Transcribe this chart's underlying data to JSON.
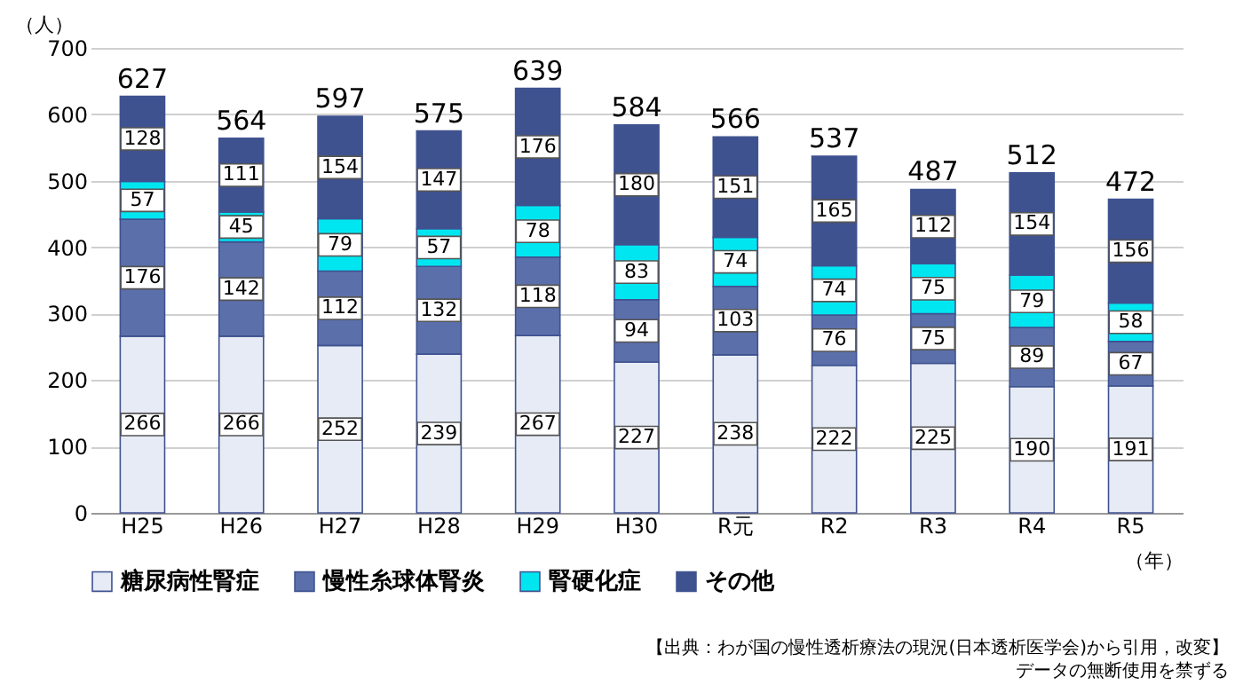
{
  "chart_data": {
    "type": "bar",
    "stacked": true,
    "ylabel": "（人）",
    "xlabel": "（年）",
    "categories": [
      "H25",
      "H26",
      "H27",
      "H28",
      "H29",
      "H30",
      "R元",
      "R2",
      "R3",
      "R4",
      "R5"
    ],
    "series": [
      {
        "name": "糖尿病性腎症",
        "color": "#e6ebf5",
        "values": [
          266,
          266,
          252,
          239,
          267,
          227,
          238,
          222,
          225,
          190,
          191
        ]
      },
      {
        "name": "慢性糸球体腎炎",
        "color": "#5b6fab",
        "values": [
          176,
          142,
          112,
          132,
          118,
          94,
          103,
          76,
          75,
          89,
          67
        ]
      },
      {
        "name": "腎硬化症",
        "color": "#00e6f0",
        "values": [
          57,
          45,
          79,
          57,
          78,
          83,
          74,
          74,
          75,
          79,
          58
        ]
      },
      {
        "name": "その他",
        "color": "#3f5290",
        "values": [
          128,
          111,
          154,
          147,
          176,
          180,
          151,
          165,
          112,
          154,
          156
        ]
      }
    ],
    "totals": [
      "627",
      "564",
      "597",
      "575",
      "639",
      "584",
      "566",
      "537",
      "487",
      "512",
      "472"
    ],
    "data_labels": true,
    "ylim": [
      0,
      700
    ],
    "yticks": [
      0,
      100,
      200,
      300,
      400,
      500,
      600,
      700
    ],
    "grid": "y",
    "legend": "bottom",
    "annotations": [
      "【出典：わが国の慢性透析療法の現況(日本透析医学会)から引用，改変】",
      "データの無断使用を禁ずる"
    ]
  }
}
